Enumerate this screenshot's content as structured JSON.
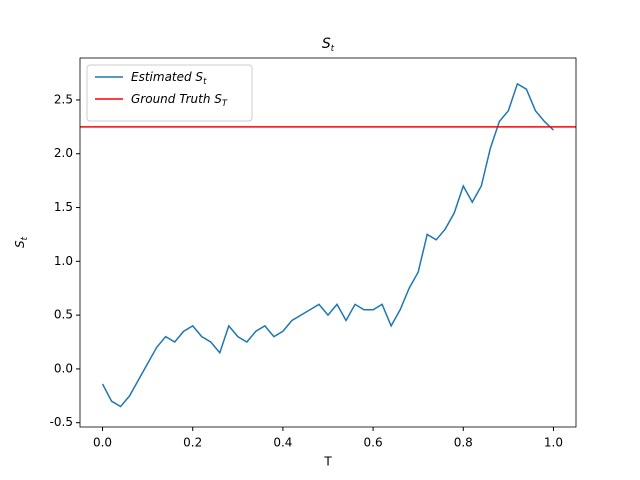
{
  "chart_data": {
    "type": "line",
    "title": "S",
    "title_sub": "t",
    "x_label": "T",
    "y_label": "S",
    "y_label_sub": "t",
    "x": [
      0,
      0.02,
      0.04,
      0.06,
      0.08,
      0.1,
      0.12,
      0.14,
      0.16,
      0.18,
      0.2,
      0.22,
      0.24,
      0.26,
      0.28,
      0.3,
      0.32,
      0.34,
      0.36,
      0.38,
      0.4,
      0.42,
      0.44,
      0.46,
      0.48,
      0.5,
      0.52,
      0.54,
      0.56,
      0.58,
      0.6,
      0.62,
      0.64,
      0.66,
      0.68,
      0.7,
      0.72,
      0.74,
      0.76,
      0.78,
      0.8,
      0.82,
      0.84,
      0.86,
      0.88,
      0.9,
      0.92,
      0.94,
      0.96,
      0.98,
      1.0
    ],
    "series": [
      {
        "name": "Estimated S",
        "name_sub": "t",
        "color": "#1f77b4",
        "values": [
          -0.14,
          -0.3,
          -0.35,
          -0.25,
          -0.1,
          0.05,
          0.2,
          0.3,
          0.25,
          0.35,
          0.4,
          0.3,
          0.25,
          0.15,
          0.4,
          0.3,
          0.25,
          0.35,
          0.4,
          0.3,
          0.35,
          0.45,
          0.5,
          0.55,
          0.6,
          0.5,
          0.6,
          0.45,
          0.6,
          0.55,
          0.55,
          0.6,
          0.4,
          0.55,
          0.75,
          0.9,
          1.25,
          1.2,
          1.3,
          1.45,
          1.7,
          1.55,
          1.7,
          2.05,
          2.3,
          2.4,
          2.65,
          2.6,
          2.4,
          2.3,
          2.22
        ]
      }
    ],
    "hlines": [
      {
        "name": "Ground Truth S",
        "name_sub": "T",
        "color": "#ff0000",
        "y": 2.25
      }
    ],
    "xlim": [
      -0.05,
      1.05
    ],
    "ylim": [
      -0.54,
      2.89
    ],
    "xticks": [
      {
        "value": 0,
        "label": "0.0"
      },
      0.2,
      0.4,
      0.6,
      0.8,
      {
        "value": 1,
        "label": "1.0"
      }
    ],
    "yticks": [
      -0.5,
      {
        "value": 0,
        "label": "0.0"
      },
      0.5,
      {
        "value": 1,
        "label": "1.0"
      },
      1.5,
      {
        "value": 2,
        "label": "2.0"
      },
      2.5
    ],
    "grid": false,
    "legend": "upper left"
  }
}
